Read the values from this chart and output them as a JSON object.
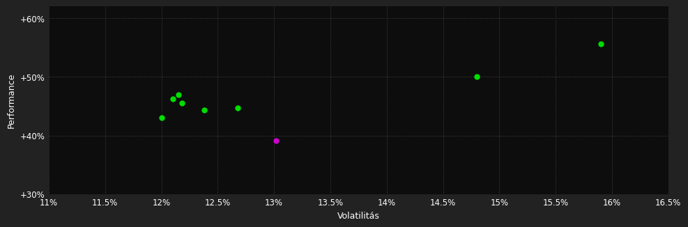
{
  "background_color": "#222222",
  "plot_bg_color": "#0d0d0d",
  "grid_color": "#444444",
  "text_color": "#ffffff",
  "xlabel": "Volatilitás",
  "ylabel": "Performance",
  "xlim": [
    0.11,
    0.165
  ],
  "ylim": [
    0.3,
    0.62
  ],
  "xticks": [
    0.11,
    0.115,
    0.12,
    0.125,
    0.13,
    0.135,
    0.14,
    0.145,
    0.15,
    0.155,
    0.16,
    0.165
  ],
  "yticks": [
    0.3,
    0.4,
    0.5,
    0.6
  ],
  "green_points": [
    [
      0.12,
      0.43
    ],
    [
      0.121,
      0.462
    ],
    [
      0.1215,
      0.47
    ],
    [
      0.1218,
      0.456
    ],
    [
      0.1238,
      0.444
    ],
    [
      0.1268,
      0.447
    ],
    [
      0.148,
      0.5
    ],
    [
      0.159,
      0.556
    ]
  ],
  "magenta_points": [
    [
      0.1302,
      0.391
    ]
  ],
  "green_color": "#00dd00",
  "magenta_color": "#cc00cc",
  "marker_size": 6,
  "font_size_axis": 9,
  "font_size_tick": 8.5
}
